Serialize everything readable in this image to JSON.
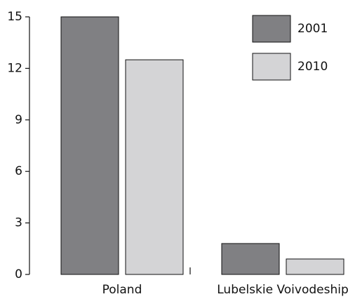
{
  "chart_data": {
    "type": "bar",
    "categories": [
      "Poland",
      "Lubelskie Voivodeship"
    ],
    "series": [
      {
        "name": "2001",
        "color": "#808083",
        "values": [
          15,
          1.8
        ]
      },
      {
        "name": "2010",
        "color": "#d4d4d6",
        "values": [
          12.5,
          0.9
        ]
      }
    ],
    "ylim": [
      0,
      15
    ],
    "yticks": [
      0,
      3,
      6,
      9,
      12,
      15
    ],
    "grid": false,
    "legend": "top-right"
  }
}
